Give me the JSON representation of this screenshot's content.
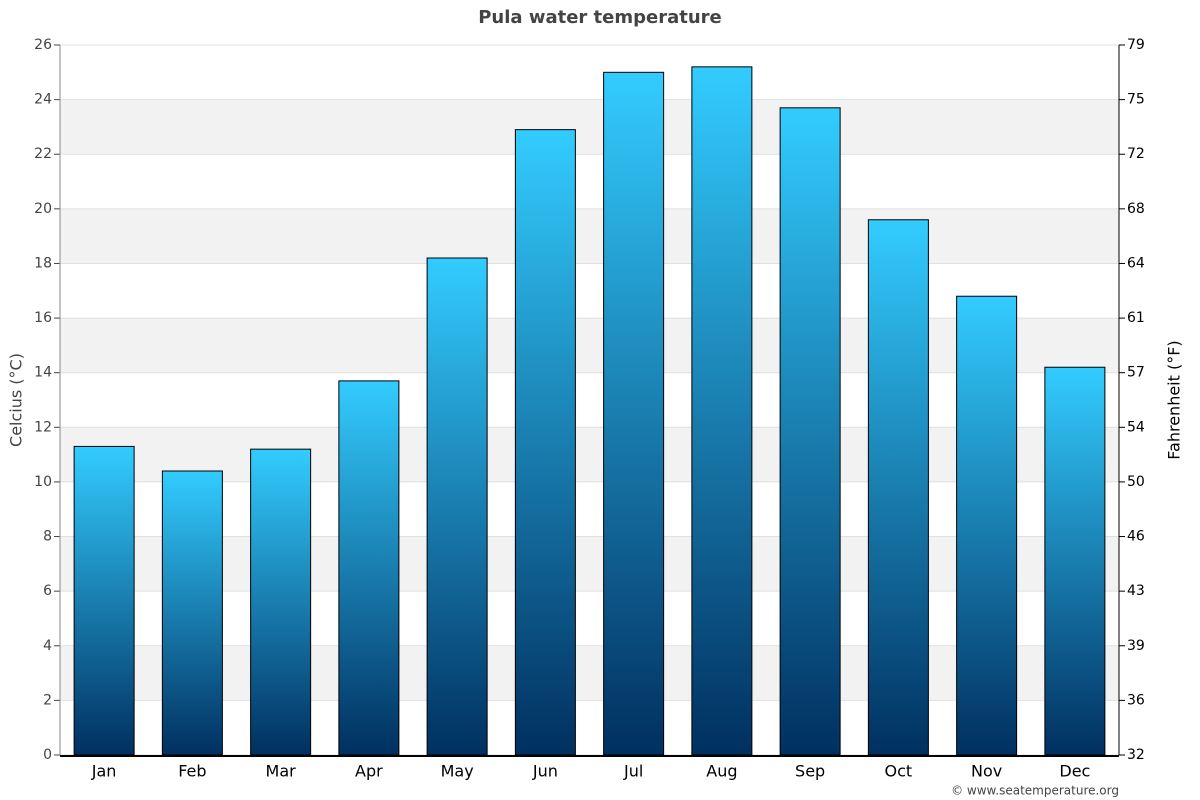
{
  "chart_data": {
    "type": "bar",
    "title": "Pula water temperature",
    "y_label": "Celcius (°C)",
    "y2_label": "Fahrenheit (°F)",
    "source": "© www.seatemperature.org",
    "categories": [
      "Jan",
      "Feb",
      "Mar",
      "Apr",
      "May",
      "Jun",
      "Jul",
      "Aug",
      "Sep",
      "Oct",
      "Nov",
      "Dec"
    ],
    "values": [
      11.3,
      10.4,
      11.2,
      13.7,
      18.2,
      22.9,
      25.0,
      25.2,
      23.7,
      19.6,
      16.8,
      14.2
    ],
    "gradient": [
      "#33ccff",
      "#003060"
    ],
    "ylim": [
      0,
      26
    ],
    "yticks": [
      0,
      2,
      4,
      6,
      8,
      10,
      12,
      14,
      16,
      18,
      20,
      22,
      24,
      26
    ],
    "y2lim": [
      32,
      78.8
    ],
    "y2ticks": [
      32,
      {
        "value": 35.6,
        "label": "36"
      },
      {
        "value": 39.2,
        "label": "39"
      },
      {
        "value": 42.8,
        "label": "43"
      },
      {
        "value": 46.4,
        "label": "46"
      },
      50,
      {
        "value": 53.6,
        "label": "54"
      },
      {
        "value": 57.2,
        "label": "57"
      },
      {
        "value": 60.8,
        "label": "61"
      },
      {
        "value": 64.4,
        "label": "64"
      },
      68,
      {
        "value": 71.6,
        "label": "72"
      },
      {
        "value": 75.2,
        "label": "75"
      },
      {
        "value": 78.8,
        "label": "79"
      }
    ],
    "grid": true
  }
}
